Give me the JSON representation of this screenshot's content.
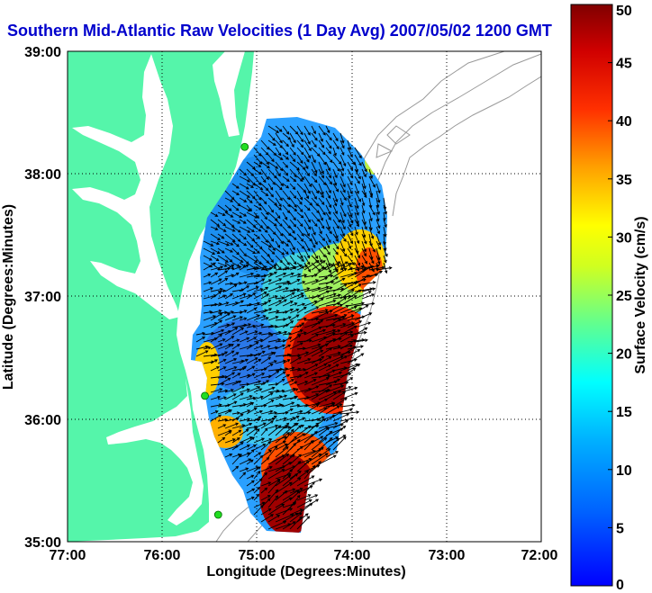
{
  "title": "Southern Mid-Atlantic Raw Velocities (1 Day Avg) 2007/05/02 1200 GMT",
  "x_axis": {
    "label": "Longitude (Degrees:Minutes)",
    "ticks": [
      "77:00",
      "76:00",
      "75:00",
      "74:00",
      "73:00",
      "72:00"
    ]
  },
  "y_axis": {
    "label": "Latitude (Degrees:Minutes)",
    "ticks": [
      "39:00",
      "38:00",
      "37:00",
      "36:00",
      "35:00"
    ]
  },
  "colorbar": {
    "label": "Surface Velocity (cm/s)",
    "ticks": [
      "50",
      "45",
      "40",
      "35",
      "30",
      "25",
      "20",
      "15",
      "10",
      "5",
      "0"
    ],
    "min": 0,
    "max": 50
  },
  "colors": {
    "title": "#0000cc",
    "land": "#55f5aa",
    "water": "#ffffff",
    "vector": "#000000",
    "station": "#22dd22"
  },
  "map_extent": {
    "lon_west": 77.0,
    "lon_east": 72.0,
    "lat_south": 35.0,
    "lat_north": 39.0
  },
  "stations": [
    {
      "lon": 75.13,
      "lat": 38.22
    },
    {
      "lon": 75.55,
      "lat": 36.19
    },
    {
      "lon": 75.41,
      "lat": 35.22
    }
  ]
}
